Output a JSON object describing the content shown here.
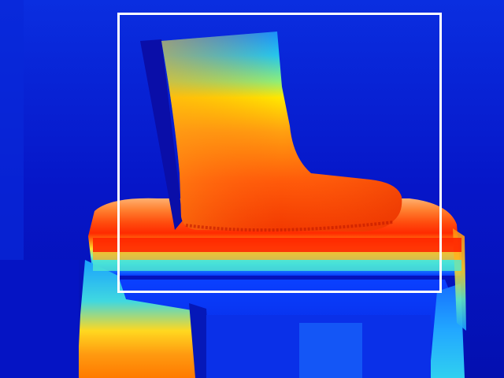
{
  "image": {
    "kind": "depth-map",
    "colormap": "jet",
    "subject": "boot on a table"
  },
  "colors": {
    "background_far": "#0414c4",
    "bounding_box": "#ffffff"
  }
}
